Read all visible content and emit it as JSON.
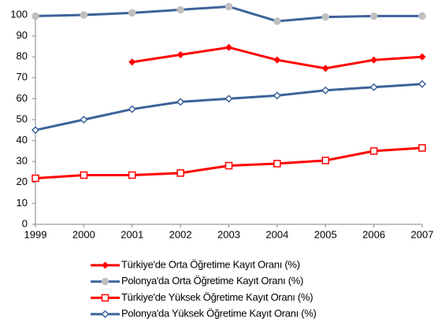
{
  "chart_data": {
    "type": "line",
    "categories": [
      "1999",
      "2000",
      "2001",
      "2002",
      "2003",
      "2004",
      "2005",
      "2006",
      "2007"
    ],
    "ylim": [
      0,
      100
    ],
    "yticks": [
      0,
      10,
      20,
      30,
      40,
      50,
      60,
      70,
      80,
      90,
      100
    ],
    "grid": false,
    "legend": "bottom",
    "series": [
      {
        "name": "Türkiye'de Orta Öğretime Kayıt Oranı (%)",
        "color": "#ff0000",
        "marker": "diamond",
        "marker_fill": "#ff0000",
        "values": [
          null,
          null,
          77.5,
          81,
          84.5,
          78.5,
          74.5,
          78.5,
          80
        ]
      },
      {
        "name": "Polonya'da Orta Öğretime Kayıt Oranı (%)",
        "color": "#3d6399",
        "marker": "circle",
        "marker_fill": "#c0c0c0",
        "values": [
          99.5,
          100,
          101,
          102.5,
          104,
          97,
          99,
          99.5,
          99.5
        ]
      },
      {
        "name": "Türkiye'de Yüksek Öğretime Kayıt Oranı (%)",
        "color": "#ff0000",
        "marker": "square",
        "marker_fill": "#ffffff",
        "values": [
          22,
          23.5,
          23.5,
          24.5,
          28,
          29,
          30.5,
          35,
          36.5
        ]
      },
      {
        "name": "Polonya'da Yüksek Öğretime Kayıt Oranı (%)",
        "color": "#3d6399",
        "marker": "diamond",
        "marker_fill": "#ffffff",
        "values": [
          45,
          50,
          55,
          58.5,
          60,
          61.5,
          64,
          65.5,
          67
        ]
      }
    ]
  }
}
